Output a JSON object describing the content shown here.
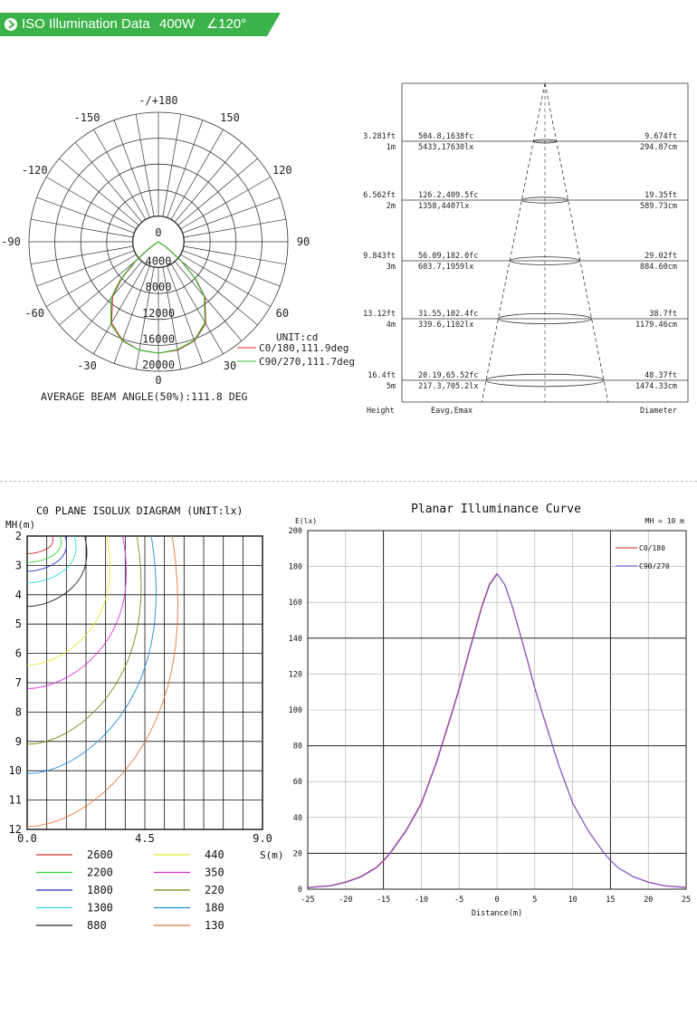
{
  "header": {
    "title": "ISO Illumination Data",
    "power": "400W",
    "angle": "∠120°",
    "accent": "#3cb34a"
  },
  "chart_data": [
    {
      "id": "polar",
      "type": "polar",
      "unit_label": "UNIT:cd",
      "angle_labels": [
        "-/+180",
        "-150",
        "150",
        "-120",
        "120",
        "-90",
        "90",
        "-60",
        "60",
        "-30",
        "30",
        "0"
      ],
      "radial_ticks": [
        "0",
        "4000",
        "8000",
        "12000",
        "16000",
        "20000"
      ],
      "rmax": 20000,
      "series": [
        {
          "name": "C0/180,111.9deg",
          "color": "#d42a2a",
          "theta": [
            -60,
            -55,
            -50,
            -45,
            -40,
            -30,
            -20,
            -10,
            0,
            10,
            20,
            30,
            40,
            45,
            50,
            55,
            60
          ],
          "r": [
            0,
            1500,
            4500,
            8000,
            11000,
            14500,
            16200,
            17000,
            17200,
            17000,
            16300,
            14600,
            11200,
            8200,
            4700,
            1600,
            0
          ]
        },
        {
          "name": "C90/270,111.7deg",
          "color": "#2fbf2f",
          "theta": [
            -60,
            -55,
            -50,
            -45,
            -40,
            -30,
            -20,
            -10,
            0,
            10,
            20,
            30,
            40,
            45,
            50,
            55,
            60
          ],
          "r": [
            0,
            1700,
            4900,
            8400,
            11400,
            14700,
            16300,
            17000,
            17200,
            16900,
            16200,
            14400,
            11000,
            8000,
            4600,
            1500,
            0
          ]
        }
      ],
      "footer": "AVERAGE BEAM ANGLE(50%):111.8 DEG"
    },
    {
      "id": "cone",
      "type": "table",
      "rows": [
        {
          "ft": "3.281ft",
          "m": "1m",
          "fc": "504.8,1638fc",
          "lx": "5433,17630lx",
          "dft": "9.674ft",
          "dcm": "294.87cm"
        },
        {
          "ft": "6.562ft",
          "m": "2m",
          "fc": "126.2,409.5fc",
          "lx": "1358,4407lx",
          "dft": "19.35ft",
          "dcm": "589.73cm"
        },
        {
          "ft": "9.843ft",
          "m": "3m",
          "fc": "56.09,182.0fc",
          "lx": "603.7,1959lx",
          "dft": "29.02ft",
          "dcm": "884.60cm"
        },
        {
          "ft": "13.12ft",
          "m": "4m",
          "fc": "31.55,102.4fc",
          "lx": "339.6,1102lx",
          "dft": "38.7ft",
          "dcm": "1179.46cm"
        },
        {
          "ft": "16.4ft",
          "m": "5m",
          "fc": "20.19,65.52fc",
          "lx": "217.3,705.2lx",
          "dft": "48.37ft",
          "dcm": "1474.33cm"
        }
      ],
      "col_height": "Height",
      "col_eavg": "Eavg,Emax",
      "col_diameter": "Diameter"
    },
    {
      "id": "isolux",
      "type": "line",
      "title": "C0 PLANE ISOLUX DIAGRAM (UNIT:lx)",
      "ylabel": "MH(m)",
      "xlabel": "S(m)",
      "y_ticks": [
        "2",
        "3",
        "4",
        "5",
        "6",
        "7",
        "8",
        "9",
        "10",
        "11",
        "12"
      ],
      "x_ticks": [
        "0.0",
        "4.5",
        "9.0"
      ],
      "xlim": [
        0,
        9
      ],
      "ylim": [
        2,
        12
      ],
      "contours": [
        {
          "name": "2600",
          "color": "#d42a2a",
          "s0": 0.95,
          "y0": 2.6
        },
        {
          "name": "2200",
          "color": "#35d435",
          "s0": 1.25,
          "y0": 2.9
        },
        {
          "name": "1800",
          "color": "#2233cc",
          "s0": 1.45,
          "y0": 3.2
        },
        {
          "name": "1300",
          "color": "#33dddd",
          "s0": 1.8,
          "y0": 3.6
        },
        {
          "name": "880",
          "color": "#222222",
          "s0": 2.2,
          "y0": 4.4
        },
        {
          "name": "440",
          "color": "#e8e833",
          "s0": 3.05,
          "y0": 6.4
        },
        {
          "name": "350",
          "color": "#e030e0",
          "s0": 3.65,
          "y0": 7.2
        },
        {
          "name": "220",
          "color": "#7a8a12",
          "s0": 4.2,
          "y0": 9.1
        },
        {
          "name": "180",
          "color": "#1f8fd8",
          "s0": 4.75,
          "y0": 10.1
        },
        {
          "name": "130",
          "color": "#e07a3a",
          "s0": 5.55,
          "y0": 11.9
        }
      ]
    },
    {
      "id": "planar",
      "type": "line",
      "title": "Planar Illuminance Curve",
      "ylabel": "E(lx)",
      "xlabel": "Distance(m)",
      "note": "MH = 10 m",
      "xlim": [
        -25,
        25
      ],
      "ylim": [
        0,
        200
      ],
      "x_ticks": [
        -25,
        -20,
        -15,
        -10,
        -5,
        0,
        5,
        10,
        15,
        20,
        25
      ],
      "y_ticks": [
        0,
        20,
        40,
        60,
        80,
        100,
        120,
        140,
        160,
        180,
        200
      ],
      "x": [
        -25,
        -22,
        -20,
        -18,
        -16,
        -15,
        -14,
        -12,
        -10,
        -8,
        -6,
        -5,
        -4,
        -3,
        -2,
        -1,
        0,
        1,
        2,
        3,
        4,
        5,
        6,
        8,
        10,
        12,
        14,
        15,
        16,
        18,
        20,
        22,
        25
      ],
      "series": [
        {
          "name": "C0/180",
          "color": "#cc2222",
          "values": [
            1,
            2,
            4,
            7,
            12,
            16,
            21,
            33,
            48,
            71,
            98,
            112,
            128,
            143,
            158,
            170,
            176,
            170,
            158,
            143,
            128,
            112,
            98,
            71,
            48,
            33,
            21,
            16,
            12,
            7,
            4,
            2,
            1
          ]
        },
        {
          "name": "C90/270",
          "color": "#7755dd",
          "values": [
            1,
            2,
            4,
            7,
            12,
            16,
            21,
            33,
            48,
            71,
            98,
            112,
            128,
            143,
            158,
            170,
            176,
            170,
            158,
            143,
            128,
            112,
            98,
            71,
            48,
            33,
            21,
            16,
            12,
            7,
            4,
            2,
            1
          ]
        }
      ]
    }
  ]
}
